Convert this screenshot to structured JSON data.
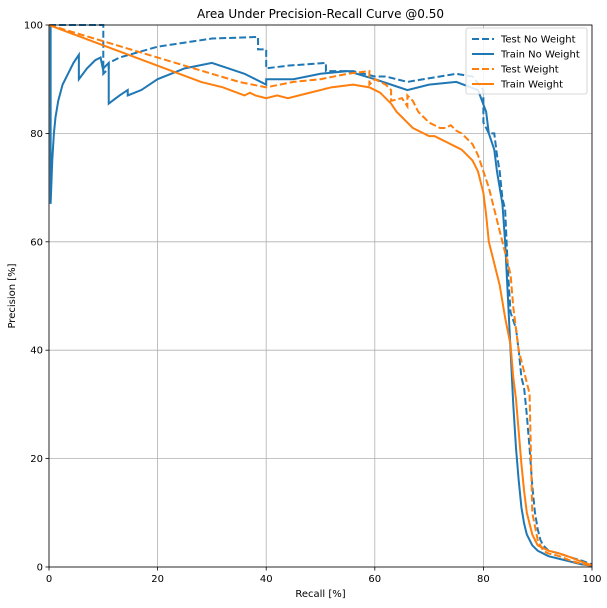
{
  "chart_data": {
    "type": "line",
    "title": "Area Under Precision-Recall Curve @0.50",
    "xlabel": "Recall [%]",
    "ylabel": "Precision [%]",
    "xlim": [
      0,
      100
    ],
    "ylim": [
      0,
      100
    ],
    "xticks": [
      0,
      20,
      40,
      60,
      80,
      100
    ],
    "yticks": [
      0,
      20,
      40,
      60,
      80,
      100
    ],
    "grid": true,
    "legend_position": "top-right",
    "series": [
      {
        "name": "Test No Weight",
        "color": "#1f77b4",
        "linestyle": "dashed",
        "x": [
          0,
          10,
          10,
          11,
          11,
          13,
          20,
          30,
          38.5,
          38.5,
          40,
          40,
          44,
          51,
          51,
          56,
          60,
          62,
          66,
          72,
          75,
          78,
          80,
          80,
          81,
          82,
          82.5,
          83,
          83.5,
          84,
          84.5,
          85,
          86,
          86.5,
          87,
          87.5,
          88,
          88.5,
          89,
          89.5,
          90,
          90.5,
          91,
          92,
          94,
          96,
          98,
          100
        ],
        "y": [
          100,
          100,
          91,
          92,
          93,
          94,
          96,
          97.5,
          97.8,
          95.5,
          95.5,
          92,
          92.5,
          93,
          91.5,
          91.5,
          90.5,
          90.5,
          89.5,
          90.5,
          91,
          90.5,
          88,
          82,
          80,
          80,
          76,
          73,
          68,
          66,
          55,
          47,
          44,
          40,
          35,
          33,
          28,
          22,
          15,
          10,
          7,
          5,
          4,
          3,
          2.5,
          1.8,
          1.2,
          0.5
        ]
      },
      {
        "name": "Train No Weight",
        "color": "#1f77b4",
        "linestyle": "solid",
        "x": [
          0.3,
          0.3,
          0.6,
          0.9,
          1.2,
          1.7,
          2.5,
          3.5,
          4.5,
          5.5,
          5.5,
          7,
          8.5,
          9.5,
          10,
          10,
          11,
          11,
          13,
          14.5,
          14.5,
          17,
          20,
          25,
          30,
          33,
          36,
          40,
          40,
          45,
          50,
          55,
          60,
          63,
          66,
          70,
          75,
          79,
          80.5,
          81,
          82,
          82.5,
          83,
          83.5,
          84,
          84.5,
          85,
          85.5,
          86,
          86.5,
          87,
          87.5,
          88,
          88.5,
          89,
          90,
          91,
          92,
          94,
          96,
          98,
          100
        ],
        "y": [
          100,
          67,
          75,
          80,
          83,
          86,
          89,
          91,
          93,
          94.5,
          90,
          92,
          93.5,
          94,
          91.5,
          92,
          93,
          85.5,
          87,
          88,
          87,
          88,
          90,
          92,
          93,
          92,
          91,
          89,
          90,
          90,
          91,
          91.5,
          90,
          89,
          88,
          89,
          89.5,
          88,
          84,
          80,
          77,
          73,
          70,
          67,
          60,
          50,
          40,
          30,
          22,
          16,
          11,
          8,
          6,
          5,
          4,
          3,
          2.5,
          2,
          1.5,
          1,
          0.5,
          0.2
        ]
      },
      {
        "name": "Test  Weight",
        "color": "#ff7f0e",
        "linestyle": "dashed",
        "x": [
          0,
          5,
          10,
          15,
          20,
          25,
          30,
          35,
          40,
          45,
          50,
          55,
          59,
          59,
          60,
          62,
          63,
          63,
          65,
          66,
          66,
          67,
          68,
          69,
          70,
          71,
          72,
          73,
          74,
          75,
          76,
          77,
          78,
          79,
          80,
          81,
          82,
          83,
          84,
          85,
          85.5,
          86,
          86.5,
          87,
          87.5,
          88,
          88.5,
          89,
          90,
          90.5,
          91,
          92,
          94,
          96,
          98,
          100
        ],
        "y": [
          100,
          98.5,
          97,
          95.5,
          94,
          92.5,
          91,
          89.5,
          88.5,
          89.5,
          90,
          91,
          91.5,
          89,
          90,
          89,
          88,
          86,
          86.5,
          85,
          87,
          86,
          84,
          83,
          82,
          81.5,
          81,
          81,
          81.5,
          80.5,
          80,
          79,
          78,
          76,
          73,
          70,
          66,
          62,
          58,
          54,
          48,
          44,
          40,
          38,
          36,
          34,
          32,
          10,
          5,
          4,
          3,
          2.5,
          2,
          1.2,
          0.6,
          0.2
        ]
      },
      {
        "name": "Train  Weight",
        "color": "#ff7f0e",
        "linestyle": "solid",
        "x": [
          0,
          4,
          8,
          12,
          16,
          20,
          24,
          28,
          32,
          36,
          37,
          38,
          40,
          42,
          44,
          48,
          52,
          56,
          59,
          61,
          62,
          63,
          64,
          65,
          66,
          67,
          68,
          69,
          70,
          71,
          72,
          73,
          74,
          75,
          76,
          77,
          78,
          79,
          80,
          80.5,
          81,
          82,
          83,
          84,
          85,
          85.5,
          86,
          86.5,
          87,
          87.5,
          88,
          89,
          90,
          92,
          94,
          96,
          98,
          100
        ],
        "y": [
          100,
          98.5,
          97,
          95.5,
          94,
          92.5,
          91,
          89.5,
          88.5,
          87,
          87.5,
          87,
          86.5,
          87,
          86.5,
          87.5,
          88.5,
          89,
          88.5,
          87.5,
          86.5,
          85.5,
          84,
          83,
          82,
          81,
          80.5,
          80,
          79.5,
          79.5,
          79,
          78.5,
          78,
          77.5,
          77,
          76,
          75,
          73,
          69,
          65,
          60,
          56,
          52,
          46,
          41,
          35,
          31,
          25,
          19,
          14,
          10,
          6,
          4,
          3,
          2.5,
          1.8,
          1,
          0.3
        ]
      }
    ]
  }
}
